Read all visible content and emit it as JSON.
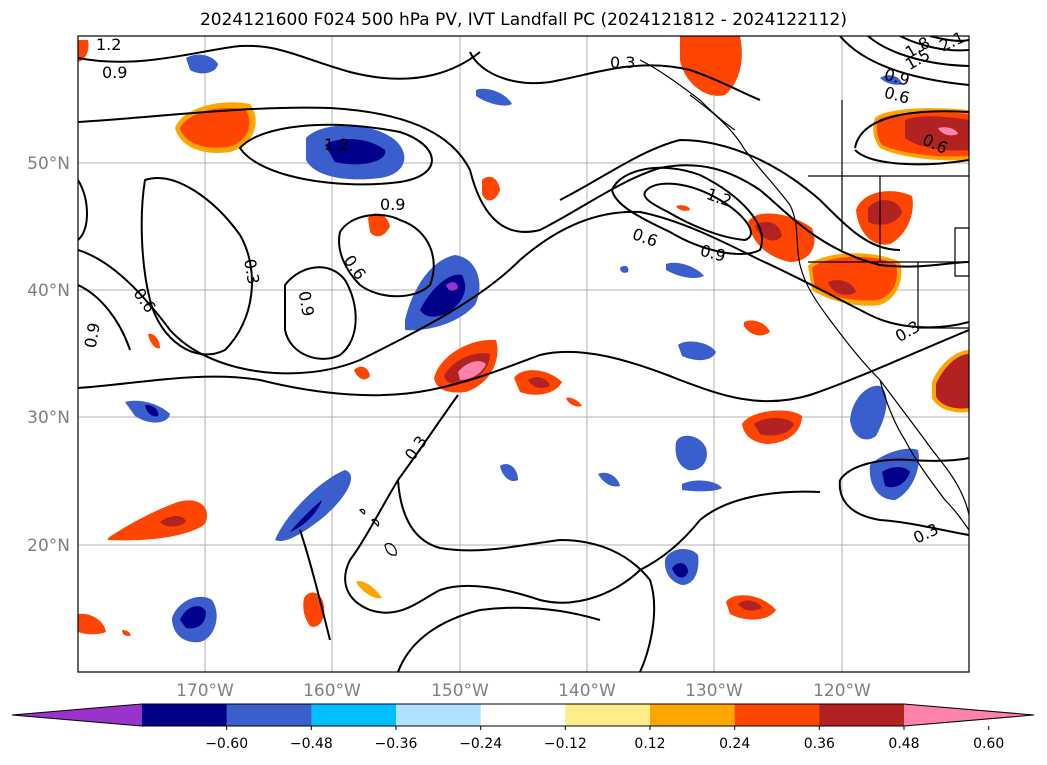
{
  "title": "2024121600 F024 500 hPa PV, IVT Landfall PC (2024121812 - 2024122112)",
  "lat_labels": [
    "50°N",
    "40°N",
    "30°N",
    "20°N"
  ],
  "lon_labels": [
    "170°W",
    "160°W",
    "150°W",
    "140°W",
    "130°W",
    "120°W"
  ],
  "contour_labels": [
    "1.2",
    "0.9",
    "0.3",
    "1.2",
    "0.9",
    "0.3",
    "0.6",
    "0.9",
    "0.6",
    "1.2",
    "0.9",
    "0.6",
    "0.3",
    "0.3",
    "0.3",
    "1.5",
    "1.8",
    "2.1",
    "0.9",
    "0.6",
    "0.6",
    "0.9"
  ],
  "colorbar": {
    "tick_labels": [
      "−0.60",
      "−0.48",
      "−0.36",
      "−0.24",
      "−0.12",
      "0.12",
      "0.24",
      "0.36",
      "0.48",
      "0.60"
    ],
    "colors": [
      "#9933cc",
      "#00008b",
      "#3a5fcd",
      "#00bfff",
      "#b0e2ff",
      "#ffffff",
      "#ffec8b",
      "#ffa500",
      "#ff4500",
      "#b22222",
      "#ff82ab"
    ]
  }
}
